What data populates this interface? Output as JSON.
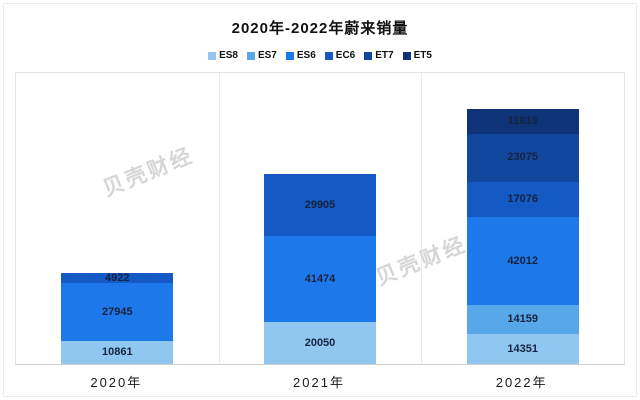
{
  "title": "2020年-2022年蔚来销量",
  "watermark": {
    "text": "贝壳财经"
  },
  "palette": {
    "ES8": "#90c7f0",
    "ES7": "#58a7e8",
    "ES6": "#1d79ea",
    "EC6": "#1459c4",
    "ET7": "#12479e",
    "ET5": "#0e3377"
  },
  "chart_data": {
    "type": "bar",
    "stacked": true,
    "title": "2020年-2022年蔚来销量",
    "categories": [
      "2020年",
      "2021年",
      "2022年"
    ],
    "series": [
      {
        "name": "ES8",
        "values": [
          10861,
          20050,
          14351
        ]
      },
      {
        "name": "ES7",
        "values": [
          null,
          null,
          14159
        ]
      },
      {
        "name": "ES6",
        "values": [
          27945,
          41474,
          42012
        ]
      },
      {
        "name": "EC6",
        "values": [
          4922,
          29905,
          17076
        ]
      },
      {
        "name": "ET7",
        "values": [
          null,
          null,
          23075
        ]
      },
      {
        "name": "ET5",
        "values": [
          null,
          null,
          11813
        ]
      }
    ],
    "totals": [
      43728,
      91429,
      122486
    ],
    "ylim": [
      0,
      140000
    ],
    "legend_position": "top",
    "value_labels": true,
    "grid": "vertical-category-separators"
  }
}
